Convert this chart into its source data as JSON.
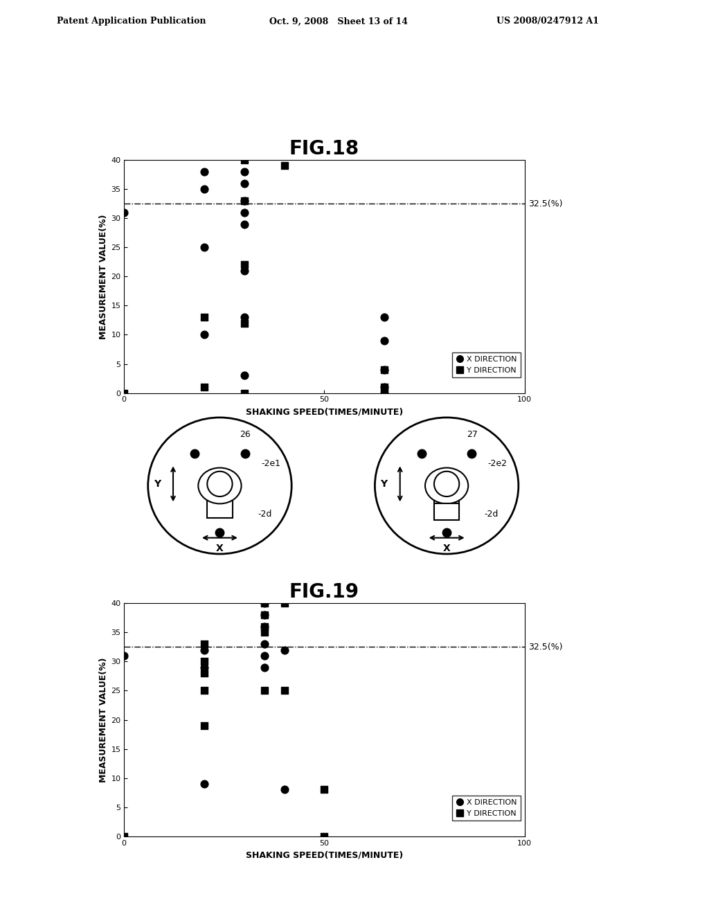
{
  "fig18_title": "FIG.18",
  "fig19_title": "FIG.19",
  "header_left": "Patent Application Publication",
  "header_center": "Oct. 9, 2008   Sheet 13 of 14",
  "header_right": "US 2008/0247912 A1",
  "xlabel": "SHAKING SPEED(TIMES/MINUTE)",
  "ylabel": "MEASUREMENT VALUE(%)",
  "ref_line": 32.5,
  "ref_label": "32.5(%)",
  "xlim": [
    0,
    100
  ],
  "ylim": [
    0,
    40
  ],
  "xticks": [
    0,
    50,
    100
  ],
  "yticks": [
    0,
    5,
    10,
    15,
    20,
    25,
    30,
    35,
    40
  ],
  "fig18_x_circle": [
    0,
    20,
    20,
    20,
    20,
    30,
    30,
    30,
    30,
    30,
    30,
    30,
    30,
    65,
    65,
    65,
    65,
    65
  ],
  "fig18_y_circle": [
    31,
    38,
    35,
    25,
    10,
    38,
    36,
    33,
    31,
    29,
    21,
    13,
    3,
    13,
    9,
    4,
    1,
    0
  ],
  "fig18_x_square": [
    0,
    20,
    20,
    30,
    30,
    30,
    30,
    30,
    40,
    65,
    65,
    65
  ],
  "fig18_y_square": [
    0,
    13,
    1,
    40,
    33,
    22,
    12,
    0,
    39,
    4,
    1,
    0
  ],
  "fig19_x_circle": [
    0,
    20,
    20,
    20,
    35,
    35,
    35,
    35,
    35,
    35,
    40,
    40
  ],
  "fig19_y_circle": [
    31,
    32,
    29,
    9,
    40,
    38,
    36,
    33,
    31,
    29,
    32,
    8
  ],
  "fig19_x_square": [
    0,
    20,
    20,
    20,
    20,
    20,
    35,
    35,
    35,
    35,
    35,
    40,
    40,
    50,
    50
  ],
  "fig19_y_square": [
    0,
    33,
    30,
    28,
    25,
    19,
    40,
    38,
    36,
    35,
    25,
    40,
    25,
    8,
    0
  ],
  "legend_circle_label": "X DIRECTION",
  "legend_square_label": "Y DIRECTION",
  "background_color": "#ffffff"
}
